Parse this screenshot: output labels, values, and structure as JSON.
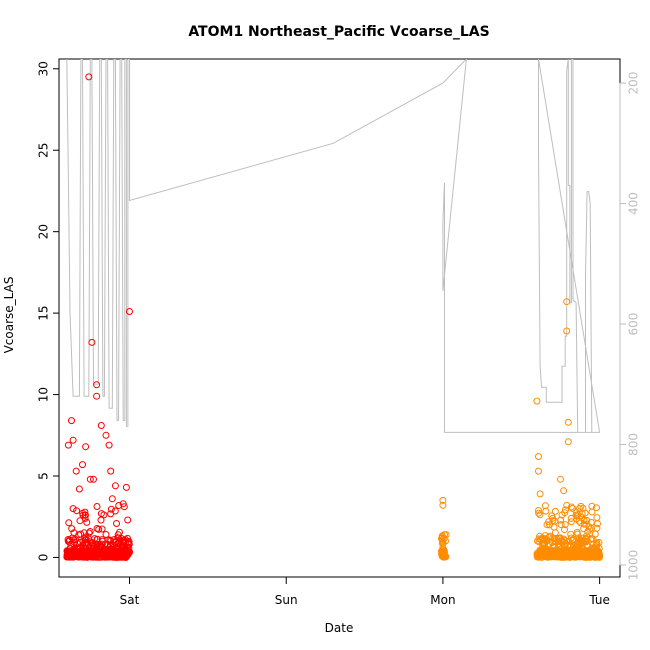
{
  "chart_data": {
    "type": "scatter",
    "title": "ATOM1 Northeast_Pacific Vcoarse_LAS",
    "xlabel": "Date",
    "ylabel": "Vcoarse_LAS",
    "x_ticks": [
      {
        "day": 1.0,
        "label": "Sat"
      },
      {
        "day": 2.0,
        "label": "Sun"
      },
      {
        "day": 3.0,
        "label": "Mon"
      },
      {
        "day": 4.0,
        "label": "Tue"
      }
    ],
    "xlim": [
      0.55,
      4.13
    ],
    "ylim": [
      -1.2,
      30.6
    ],
    "y_ticks": [
      0,
      5,
      10,
      15,
      20,
      25,
      30
    ],
    "right_axis": {
      "ticks": [
        200,
        400,
        600,
        800,
        1000
      ],
      "lim": [
        1020,
        160
      ],
      "color": "#bebebe",
      "altitude_line": [
        [
          0.6,
          160
        ],
        [
          0.61,
          360
        ],
        [
          0.62,
          580
        ],
        [
          0.64,
          720
        ],
        [
          0.68,
          720
        ],
        [
          0.69,
          160
        ],
        [
          0.7,
          160
        ],
        [
          0.71,
          720
        ],
        [
          0.74,
          720
        ],
        [
          0.75,
          160
        ],
        [
          0.76,
          160
        ],
        [
          0.77,
          700
        ],
        [
          0.8,
          700
        ],
        [
          0.81,
          160
        ],
        [
          0.82,
          160
        ],
        [
          0.83,
          720
        ],
        [
          0.84,
          720
        ],
        [
          0.85,
          160
        ],
        [
          0.86,
          160
        ],
        [
          0.87,
          740
        ],
        [
          0.89,
          740
        ],
        [
          0.9,
          160
        ],
        [
          0.91,
          160
        ],
        [
          0.92,
          760
        ],
        [
          0.93,
          760
        ],
        [
          0.94,
          160
        ],
        [
          0.95,
          160
        ],
        [
          0.96,
          760
        ],
        [
          0.97,
          760
        ],
        [
          0.97,
          160
        ],
        [
          0.98,
          160
        ],
        [
          0.98,
          770
        ],
        [
          0.99,
          770
        ],
        [
          0.99,
          160
        ],
        [
          1.0,
          160
        ],
        [
          1.0,
          395
        ],
        [
          2.3,
          300
        ],
        [
          3.0,
          200
        ],
        [
          3.15,
          160
        ],
        [
          3.0,
          545
        ],
        [
          3.0,
          430
        ],
        [
          3.01,
          365
        ],
        [
          3.01,
          545
        ],
        [
          3.01,
          780
        ],
        [
          4.0,
          780
        ],
        [
          3.61,
          160
        ],
        [
          3.61,
          310
        ],
        [
          3.62,
          670
        ],
        [
          3.63,
          705
        ],
        [
          3.66,
          705
        ],
        [
          3.66,
          730
        ],
        [
          3.76,
          730
        ],
        [
          3.76,
          670
        ],
        [
          3.78,
          670
        ],
        [
          3.78,
          620
        ],
        [
          3.79,
          620
        ],
        [
          3.79,
          180
        ],
        [
          3.8,
          160
        ],
        [
          3.8,
          370
        ],
        [
          3.81,
          370
        ],
        [
          3.81,
          565
        ],
        [
          3.82,
          565
        ],
        [
          3.82,
          160
        ],
        [
          3.83,
          160
        ],
        [
          3.83,
          560
        ],
        [
          3.85,
          565
        ],
        [
          3.86,
          780
        ],
        [
          3.91,
          780
        ],
        [
          3.91,
          520
        ],
        [
          3.92,
          380
        ],
        [
          3.93,
          380
        ],
        [
          3.94,
          400
        ],
        [
          3.95,
          780
        ],
        [
          3.96,
          780
        ]
      ]
    },
    "series": [
      {
        "color": "#ff0000",
        "x_range": [
          0.6,
          1.0
        ],
        "highlights": [
          [
            0.74,
            29.5
          ],
          [
            0.76,
            13.2
          ],
          [
            0.79,
            10.6
          ],
          [
            0.79,
            9.9
          ],
          [
            1.0,
            15.1
          ],
          [
            0.63,
            8.4
          ],
          [
            0.64,
            7.2
          ],
          [
            0.72,
            6.8
          ],
          [
            0.85,
            7.5
          ],
          [
            0.82,
            8.1
          ],
          [
            0.87,
            6.9
          ],
          [
            0.61,
            6.9
          ],
          [
            0.7,
            5.7
          ],
          [
            0.66,
            5.3
          ],
          [
            0.88,
            5.3
          ],
          [
            0.91,
            4.4
          ],
          [
            0.98,
            4.3
          ],
          [
            0.77,
            4.8
          ],
          [
            0.75,
            4.8
          ],
          [
            0.68,
            4.2
          ],
          [
            0.96,
            3.3
          ],
          [
            0.64,
            3.0
          ],
          [
            0.89,
            3.6
          ]
        ]
      },
      {
        "color": "#ff8c00",
        "x_range": [
          3.6,
          4.0
        ],
        "highlights": [
          [
            3.79,
            15.7
          ],
          [
            3.79,
            13.9
          ],
          [
            3.6,
            9.6
          ],
          [
            3.8,
            8.3
          ],
          [
            3.8,
            7.1
          ],
          [
            3.61,
            6.2
          ],
          [
            3.61,
            5.3
          ],
          [
            3.75,
            4.8
          ],
          [
            3.77,
            4.1
          ],
          [
            3.62,
            3.9
          ],
          [
            3.85,
            2.6
          ],
          [
            3.7,
            2.4
          ],
          [
            3.9,
            2.3
          ],
          [
            3.68,
            2.0
          ],
          [
            3.93,
            1.9
          ],
          [
            3.79,
            3.2
          ],
          [
            3.82,
            3.1
          ]
        ]
      },
      {
        "color": "#ff8c00",
        "x_range": [
          2.99,
          3.02
        ],
        "highlights": [
          [
            3.0,
            3.5
          ],
          [
            3.0,
            3.2
          ],
          [
            3.01,
            1.4
          ],
          [
            3.0,
            0.6
          ],
          [
            3.02,
            1.4
          ],
          [
            3.0,
            0.3
          ]
        ]
      }
    ]
  }
}
